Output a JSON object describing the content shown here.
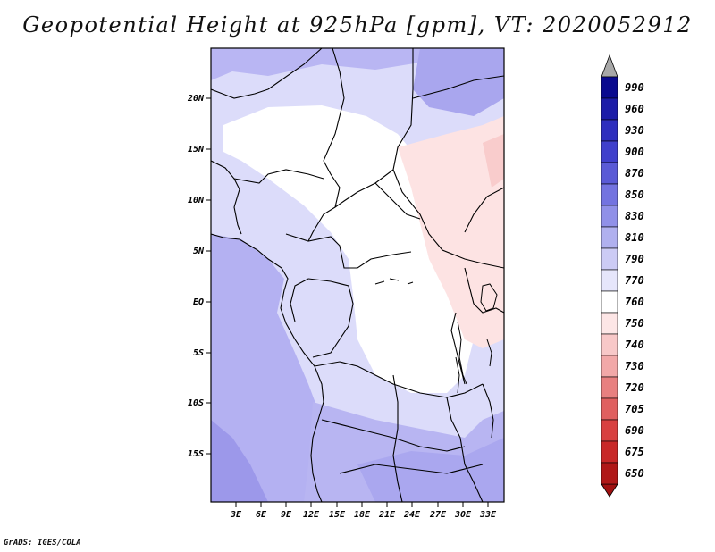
{
  "title": "Geopotential Height at 925hPa [gpm], VT: 2020052912",
  "credit": "GrADS: IGES/COLA",
  "map": {
    "lat_ticks": [
      "20N",
      "15N",
      "10N",
      "5N",
      "EQ",
      "5S",
      "10S",
      "15S"
    ],
    "lon_ticks": [
      "3E",
      "6E",
      "9E",
      "12E",
      "15E",
      "18E",
      "21E",
      "24E",
      "27E",
      "30E",
      "33E"
    ]
  },
  "colorbar": {
    "labels": [
      "990",
      "960",
      "930",
      "900",
      "870",
      "850",
      "830",
      "810",
      "790",
      "770",
      "760",
      "750",
      "740",
      "730",
      "720",
      "705",
      "690",
      "675",
      "650"
    ],
    "colors": [
      "#0a0a8f",
      "#1c1ca8",
      "#2e2ebe",
      "#4040cc",
      "#5a5ad6",
      "#7373e0",
      "#9090e8",
      "#b0b0ef",
      "#cccbf5",
      "#e6e6fb",
      "#ffffff",
      "#fde6e6",
      "#f8c8c8",
      "#f2a8a8",
      "#e88080",
      "#e06060",
      "#d84040",
      "#c82828",
      "#b01818"
    ],
    "top_arrow_color": "#a8a8a8",
    "bottom_arrow_color": "#a01010"
  }
}
